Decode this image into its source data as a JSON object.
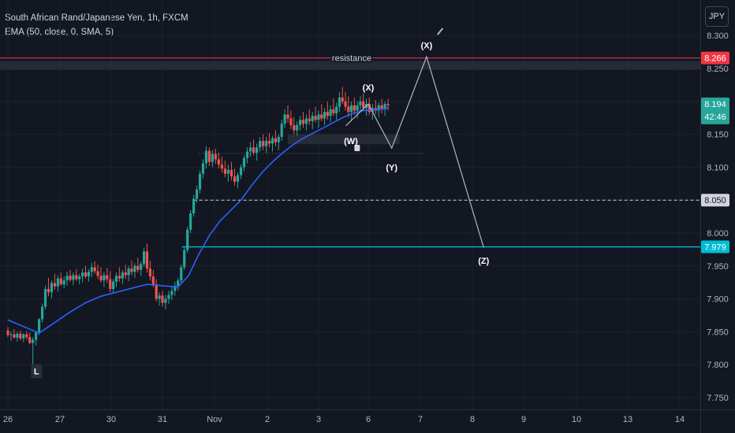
{
  "legend": {
    "symbol": "South African Rand/Japanese Yen, 1h, FXCM",
    "indicator": "EMA (50, close, 0, SMA, 5)"
  },
  "currency_button": "JPY",
  "chart_data": {
    "type": "candlestick",
    "y_ticks": [
      "7.750",
      "7.800",
      "7.850",
      "7.900",
      "7.950",
      "8.000",
      "8.050",
      "8.100",
      "8.150",
      "8.200",
      "8.250",
      "8.300"
    ],
    "x_ticks": [
      "26",
      "27",
      "30",
      "31",
      "Nov",
      "2",
      "3",
      "6",
      "7",
      "8",
      "9",
      "10",
      "13",
      "14"
    ],
    "ylim": [
      7.74,
      8.31
    ],
    "price_badges": [
      {
        "value": "8.266",
        "color": "#f23645",
        "name": "resistance"
      },
      {
        "value": "8.194",
        "subtext": "42:46",
        "color": "#26a69a",
        "name": "current"
      },
      {
        "value": "8.050",
        "color": "#d1d4dc",
        "name": "dashed"
      },
      {
        "value": "7.979",
        "color": "#00bcd4",
        "name": "support"
      }
    ],
    "resistance_label": "resistance",
    "resistance_level": 8.266,
    "dashed_level": 8.05,
    "support_level": 7.979,
    "support_start": "31",
    "wave_labels": [
      {
        "text": "(X)",
        "x": 7.0,
        "y": 8.221
      },
      {
        "text": "(W)",
        "x": 6.65,
        "y": 8.14
      },
      {
        "text": "(Y)",
        "x": 7.45,
        "y": 8.1
      },
      {
        "text": "(X)",
        "x": 8.12,
        "y": 8.285
      },
      {
        "text": "(Z)",
        "x": 9.22,
        "y": 7.958
      }
    ],
    "projection_path": [
      {
        "x": 6.55,
        "y": 8.163
      },
      {
        "x": 7.0,
        "y": 8.196
      },
      {
        "x": 7.45,
        "y": 8.129
      },
      {
        "x": 8.12,
        "y": 8.268
      },
      {
        "x": 9.22,
        "y": 7.978
      }
    ],
    "low_marker": {
      "text": "L",
      "x": 0.55,
      "y": 7.79
    },
    "candles": [
      [
        0.0,
        7.852,
        7.857,
        7.842,
        7.845
      ],
      [
        0.06,
        7.845,
        7.85,
        7.836,
        7.846
      ],
      [
        0.12,
        7.846,
        7.854,
        7.84,
        7.841
      ],
      [
        0.18,
        7.841,
        7.85,
        7.835,
        7.847
      ],
      [
        0.24,
        7.847,
        7.852,
        7.837,
        7.84
      ],
      [
        0.3,
        7.84,
        7.848,
        7.834,
        7.846
      ],
      [
        0.36,
        7.846,
        7.851,
        7.838,
        7.842
      ],
      [
        0.42,
        7.842,
        7.849,
        7.831,
        7.833
      ],
      [
        0.48,
        7.833,
        7.842,
        7.788,
        7.838
      ],
      [
        0.54,
        7.838,
        7.851,
        7.829,
        7.849
      ],
      [
        0.6,
        7.849,
        7.871,
        7.845,
        7.869
      ],
      [
        0.66,
        7.869,
        7.893,
        7.864,
        7.888
      ],
      [
        0.72,
        7.888,
        7.92,
        7.884,
        7.915
      ],
      [
        0.78,
        7.915,
        7.932,
        7.904,
        7.91
      ],
      [
        0.84,
        7.91,
        7.928,
        7.901,
        7.924
      ],
      [
        0.9,
        7.924,
        7.938,
        7.914,
        7.919
      ],
      [
        0.96,
        7.919,
        7.936,
        7.911,
        7.931
      ],
      [
        1.02,
        7.931,
        7.94,
        7.92,
        7.922
      ],
      [
        1.08,
        7.922,
        7.934,
        7.916,
        7.928
      ],
      [
        1.14,
        7.928,
        7.941,
        7.92,
        7.935
      ],
      [
        1.2,
        7.935,
        7.944,
        7.926,
        7.929
      ],
      [
        1.26,
        7.929,
        7.94,
        7.921,
        7.936
      ],
      [
        1.32,
        7.936,
        7.945,
        7.927,
        7.93
      ],
      [
        1.38,
        7.93,
        7.938,
        7.922,
        7.934
      ],
      [
        1.44,
        7.934,
        7.946,
        7.925,
        7.94
      ],
      [
        1.5,
        7.94,
        7.95,
        7.931,
        7.934
      ],
      [
        1.56,
        7.934,
        7.945,
        7.926,
        7.941
      ],
      [
        1.62,
        7.941,
        7.955,
        7.933,
        7.948
      ],
      [
        1.68,
        7.948,
        7.957,
        7.938,
        7.942
      ],
      [
        1.74,
        7.942,
        7.952,
        7.93,
        7.935
      ],
      [
        1.8,
        7.935,
        7.948,
        7.925,
        7.928
      ],
      [
        1.86,
        7.928,
        7.941,
        7.918,
        7.936
      ],
      [
        1.92,
        7.936,
        7.947,
        7.924,
        7.93
      ],
      [
        1.98,
        7.93,
        7.942,
        7.91,
        7.915
      ],
      [
        2.04,
        7.915,
        7.93,
        7.908,
        7.926
      ],
      [
        2.1,
        7.926,
        7.94,
        7.918,
        7.935
      ],
      [
        2.16,
        7.935,
        7.948,
        7.926,
        7.931
      ],
      [
        2.22,
        7.931,
        7.944,
        7.923,
        7.94
      ],
      [
        2.28,
        7.94,
        7.952,
        7.93,
        7.936
      ],
      [
        2.34,
        7.936,
        7.95,
        7.927,
        7.946
      ],
      [
        2.4,
        7.946,
        7.958,
        7.936,
        7.941
      ],
      [
        2.46,
        7.941,
        7.954,
        7.932,
        7.95
      ],
      [
        2.52,
        7.95,
        7.962,
        7.94,
        7.944
      ],
      [
        2.58,
        7.944,
        7.957,
        7.935,
        7.953
      ],
      [
        2.64,
        7.953,
        7.978,
        7.948,
        7.972
      ],
      [
        2.7,
        7.972,
        7.984,
        7.94,
        7.946
      ],
      [
        2.76,
        7.946,
        7.958,
        7.928,
        7.934
      ],
      [
        2.82,
        7.934,
        7.944,
        7.918,
        7.922
      ],
      [
        2.88,
        7.922,
        7.93,
        7.896,
        7.9
      ],
      [
        2.94,
        7.9,
        7.91,
        7.89,
        7.905
      ],
      [
        3.0,
        7.905,
        7.912,
        7.888,
        7.894
      ],
      [
        3.06,
        7.894,
        7.906,
        7.884,
        7.9
      ],
      [
        3.12,
        7.9,
        7.912,
        7.892,
        7.906
      ],
      [
        3.18,
        7.906,
        7.918,
        7.898,
        7.912
      ],
      [
        3.24,
        7.912,
        7.926,
        7.905,
        7.92
      ],
      [
        3.3,
        7.92,
        7.932,
        7.913,
        7.928
      ],
      [
        3.36,
        7.928,
        7.952,
        7.924,
        7.948
      ],
      [
        3.42,
        7.948,
        7.978,
        7.944,
        7.974
      ],
      [
        3.48,
        7.974,
        8.01,
        7.97,
        8.005
      ],
      [
        3.54,
        8.005,
        8.035,
        8.0,
        8.03
      ],
      [
        3.6,
        8.03,
        8.058,
        8.025,
        8.052
      ],
      [
        3.66,
        8.052,
        8.072,
        8.046,
        8.066
      ],
      [
        3.72,
        8.066,
        8.095,
        8.06,
        8.09
      ],
      [
        3.78,
        8.09,
        8.112,
        8.083,
        8.106
      ],
      [
        3.84,
        8.106,
        8.132,
        8.098,
        8.125
      ],
      [
        3.9,
        8.125,
        8.13,
        8.102,
        8.108
      ],
      [
        3.96,
        8.108,
        8.126,
        8.1,
        8.12
      ],
      [
        4.02,
        8.12,
        8.128,
        8.105,
        8.112
      ],
      [
        4.08,
        8.112,
        8.122,
        8.098,
        8.104
      ],
      [
        4.14,
        8.104,
        8.116,
        8.092,
        8.098
      ],
      [
        4.2,
        8.098,
        8.11,
        8.085,
        8.09
      ],
      [
        4.26,
        8.09,
        8.104,
        8.078,
        8.096
      ],
      [
        4.32,
        8.096,
        8.108,
        8.08,
        8.086
      ],
      [
        4.38,
        8.086,
        8.098,
        8.072,
        8.078
      ],
      [
        4.44,
        8.078,
        8.092,
        8.068,
        8.088
      ],
      [
        4.5,
        8.088,
        8.104,
        8.082,
        8.1
      ],
      [
        4.56,
        8.1,
        8.118,
        8.094,
        8.114
      ],
      [
        4.62,
        8.114,
        8.13,
        8.106,
        8.124
      ],
      [
        4.68,
        8.124,
        8.138,
        8.116,
        8.13
      ],
      [
        4.74,
        8.13,
        8.142,
        8.118,
        8.122
      ],
      [
        4.8,
        8.122,
        8.136,
        8.11,
        8.13
      ],
      [
        4.86,
        8.13,
        8.146,
        8.124,
        8.14
      ],
      [
        4.92,
        8.14,
        8.15,
        8.126,
        8.132
      ],
      [
        4.98,
        8.132,
        8.146,
        8.122,
        8.14
      ],
      [
        5.04,
        8.14,
        8.152,
        8.13,
        8.136
      ],
      [
        5.1,
        8.136,
        8.148,
        8.124,
        8.144
      ],
      [
        5.16,
        8.144,
        8.156,
        8.132,
        8.138
      ],
      [
        5.22,
        8.138,
        8.15,
        8.126,
        8.146
      ],
      [
        5.28,
        8.146,
        8.172,
        8.14,
        8.166
      ],
      [
        5.34,
        8.166,
        8.188,
        8.16,
        8.18
      ],
      [
        5.4,
        8.18,
        8.194,
        8.168,
        8.174
      ],
      [
        5.46,
        8.174,
        8.186,
        8.158,
        8.164
      ],
      [
        5.52,
        8.164,
        8.176,
        8.15,
        8.156
      ],
      [
        5.58,
        8.156,
        8.17,
        8.148,
        8.164
      ],
      [
        5.64,
        8.164,
        8.178,
        8.156,
        8.172
      ],
      [
        5.7,
        8.172,
        8.184,
        8.16,
        8.166
      ],
      [
        5.76,
        8.166,
        8.18,
        8.156,
        8.174
      ],
      [
        5.82,
        8.174,
        8.188,
        8.164,
        8.17
      ],
      [
        5.88,
        8.17,
        8.184,
        8.158,
        8.178
      ],
      [
        5.94,
        8.178,
        8.192,
        8.168,
        8.172
      ],
      [
        6.0,
        8.172,
        8.186,
        8.16,
        8.18
      ],
      [
        6.06,
        8.18,
        8.196,
        8.17,
        8.174
      ],
      [
        6.12,
        8.174,
        8.19,
        8.164,
        8.184
      ],
      [
        6.18,
        8.184,
        8.2,
        8.172,
        8.178
      ],
      [
        6.24,
        8.178,
        8.194,
        8.168,
        8.188
      ],
      [
        6.3,
        8.188,
        8.205,
        8.178,
        8.182
      ],
      [
        6.36,
        8.182,
        8.198,
        8.172,
        8.192
      ],
      [
        6.42,
        8.192,
        8.214,
        8.184,
        8.206
      ],
      [
        6.48,
        8.206,
        8.222,
        8.196,
        8.2
      ],
      [
        6.54,
        8.2,
        8.214,
        8.186,
        8.192
      ],
      [
        6.6,
        8.192,
        8.208,
        8.176,
        8.184
      ],
      [
        6.66,
        8.184,
        8.2,
        8.17,
        8.194
      ],
      [
        6.72,
        8.194,
        8.206,
        8.18,
        8.186
      ],
      [
        6.78,
        8.186,
        8.2,
        8.174,
        8.194
      ],
      [
        6.84,
        8.194,
        8.208,
        8.184,
        8.2
      ],
      [
        6.9,
        8.2,
        8.212,
        8.186,
        8.19
      ],
      [
        6.96,
        8.19,
        8.204,
        8.178,
        8.196
      ],
      [
        7.02,
        8.196,
        8.206,
        8.18,
        8.184
      ],
      [
        7.08,
        8.184,
        8.196,
        8.172,
        8.19
      ],
      [
        7.14,
        8.19,
        8.202,
        8.18,
        8.186
      ],
      [
        7.2,
        8.186,
        8.198,
        8.176,
        8.194
      ],
      [
        7.26,
        8.194,
        8.204,
        8.182,
        8.188
      ],
      [
        7.32,
        8.188,
        8.2,
        8.178,
        8.196
      ],
      [
        7.38,
        8.196,
        8.204,
        8.186,
        8.194
      ]
    ],
    "ema": [
      [
        0.0,
        7.868
      ],
      [
        0.3,
        7.858
      ],
      [
        0.6,
        7.848
      ],
      [
        0.9,
        7.864
      ],
      [
        1.2,
        7.88
      ],
      [
        1.5,
        7.894
      ],
      [
        1.8,
        7.904
      ],
      [
        2.1,
        7.91
      ],
      [
        2.4,
        7.916
      ],
      [
        2.7,
        7.922
      ],
      [
        3.0,
        7.92
      ],
      [
        3.3,
        7.918
      ],
      [
        3.5,
        7.935
      ],
      [
        3.7,
        7.968
      ],
      [
        3.9,
        7.996
      ],
      [
        4.1,
        8.018
      ],
      [
        4.3,
        8.034
      ],
      [
        4.5,
        8.05
      ],
      [
        4.7,
        8.072
      ],
      [
        4.9,
        8.092
      ],
      [
        5.1,
        8.108
      ],
      [
        5.3,
        8.122
      ],
      [
        5.5,
        8.134
      ],
      [
        5.7,
        8.144
      ],
      [
        5.9,
        8.152
      ],
      [
        6.1,
        8.16
      ],
      [
        6.3,
        8.168
      ],
      [
        6.5,
        8.176
      ],
      [
        6.7,
        8.182
      ],
      [
        6.9,
        8.186
      ],
      [
        7.1,
        8.188
      ],
      [
        7.38,
        8.19
      ]
    ]
  }
}
